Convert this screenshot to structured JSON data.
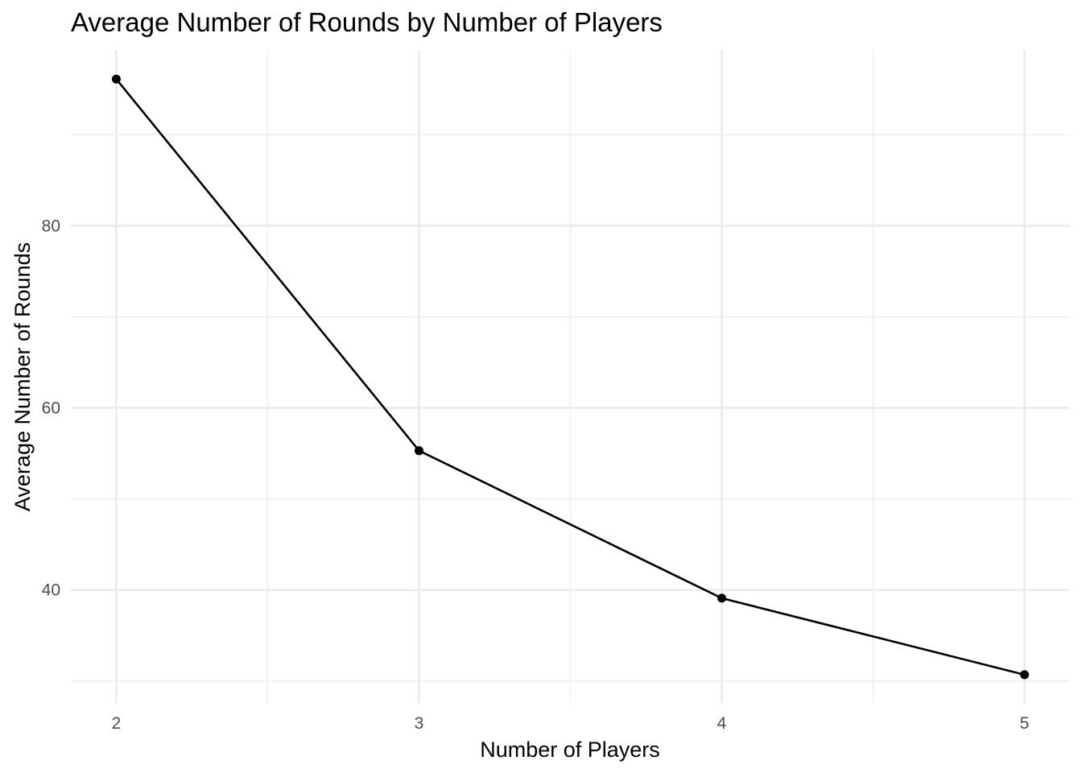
{
  "chart_data": {
    "type": "line",
    "title": "Average Number of Rounds by Number of Players",
    "xlabel": "Number of Players",
    "ylabel": "Average Number of Rounds",
    "x": [
      2,
      3,
      4,
      5
    ],
    "x_tick_labels": [
      "2",
      "3",
      "4",
      "5"
    ],
    "y_tick_labels": [
      "40",
      "60",
      "80"
    ],
    "y_ticks": [
      40,
      60,
      80
    ],
    "y_minor_ticks": [
      30,
      50,
      70,
      90
    ],
    "x_minor_ticks": [
      2.5,
      3.5,
      4.5
    ],
    "series": [
      {
        "values": [
          96.1,
          55.3,
          39.1,
          30.7
        ],
        "color": "#000000"
      }
    ],
    "xlim": [
      1.85,
      5.15
    ],
    "ylim": [
      27.6,
      99.3
    ],
    "grid": true,
    "legend": "none"
  }
}
